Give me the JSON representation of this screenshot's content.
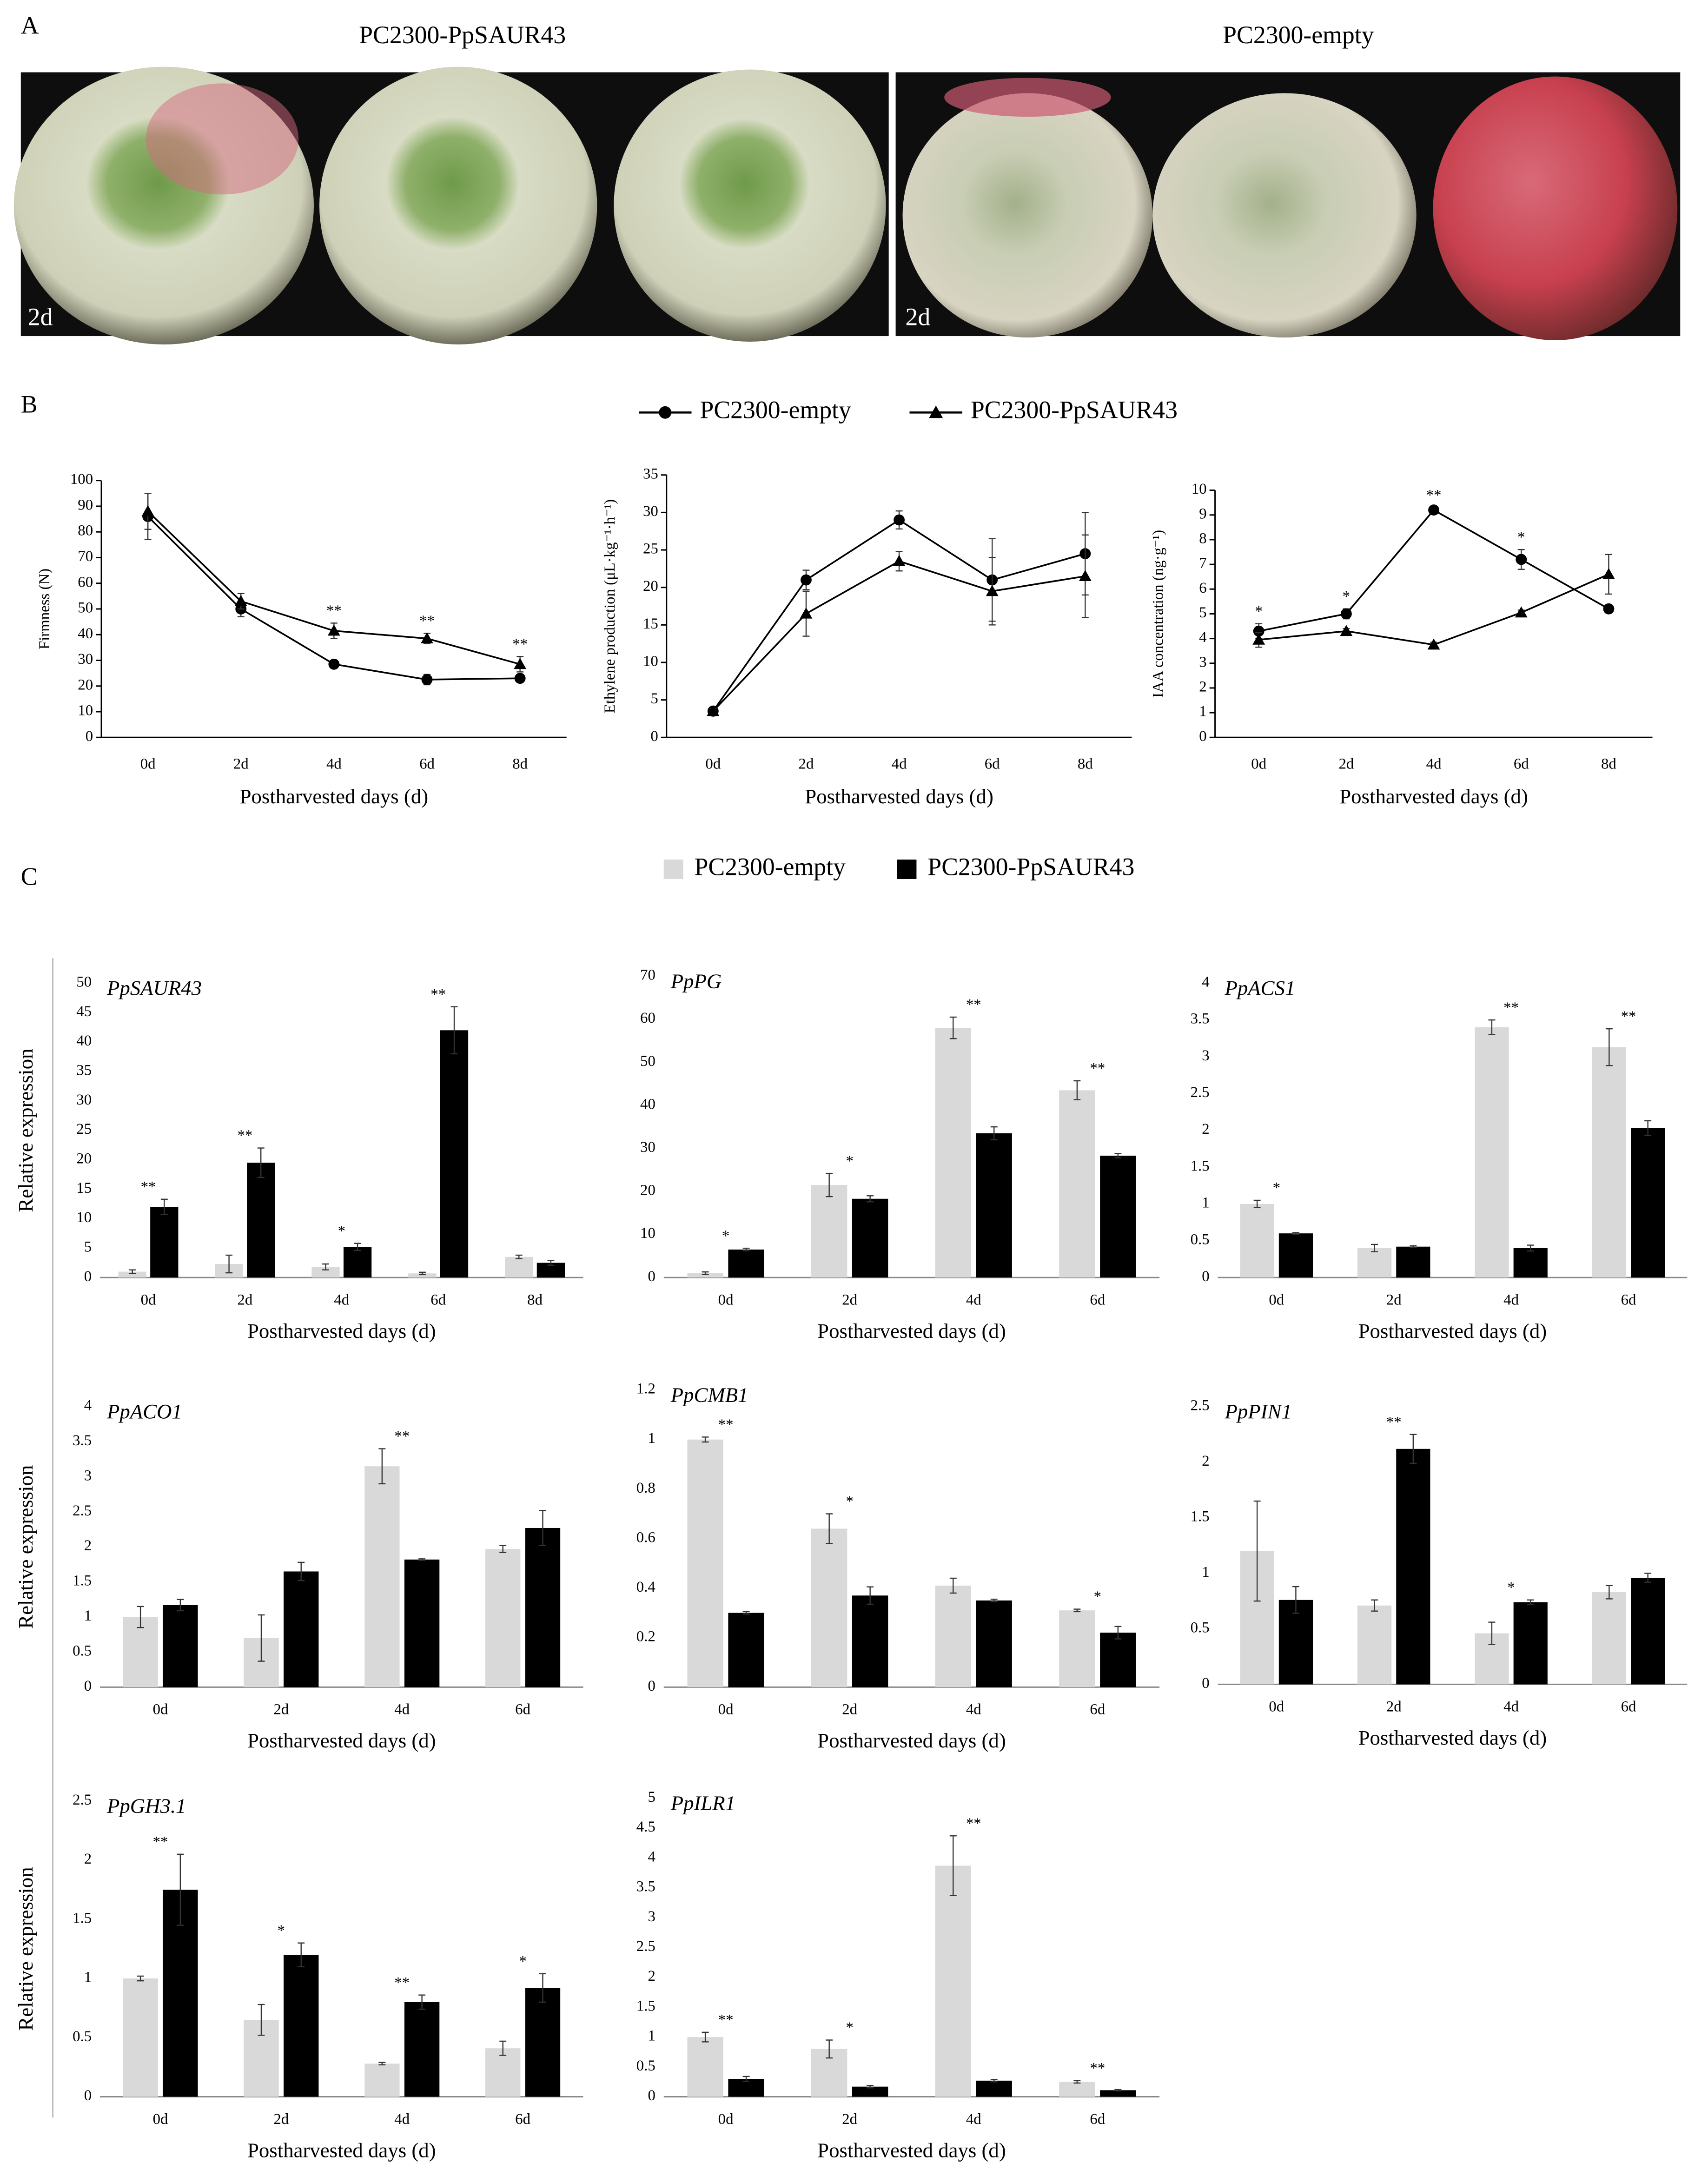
{
  "panel_labels": [
    "A",
    "B",
    "C"
  ],
  "photos": [
    {
      "title": "PC2300-PpSAUR43",
      "label": "2d"
    },
    {
      "title": "PC2300-empty",
      "label": "2d"
    }
  ],
  "chart_data": [
    {
      "type": "line",
      "ylabel": "Firmness (N)",
      "xlabel": "Postharvested days (d)",
      "categories": [
        "0d",
        "2d",
        "4d",
        "6d",
        "8d"
      ],
      "series": [
        {
          "name": "PC2300-empty",
          "color": "#000000",
          "marker": "circle",
          "values": [
            86,
            50,
            28.5,
            22.5,
            23
          ],
          "errors": [
            9,
            3,
            1.5,
            2,
            1
          ]
        },
        {
          "name": "PC2300-PpSAUR43",
          "color": "#000000",
          "marker": "triangle",
          "values": [
            88,
            53,
            41.5,
            38.5,
            28.5
          ],
          "errors": [
            7,
            3,
            3,
            2,
            3
          ]
        }
      ],
      "annotations": [
        null,
        null,
        "**",
        "**",
        "**"
      ],
      "ylim": [
        0,
        100
      ],
      "yticks": [
        0,
        10,
        20,
        30,
        40,
        50,
        60,
        70,
        80,
        90,
        100
      ]
    },
    {
      "type": "line",
      "ylabel": "Ethylene production (μL·kg⁻¹·h⁻¹)",
      "xlabel": "Postharvested days (d)",
      "categories": [
        "0d",
        "2d",
        "4d",
        "6d",
        "8d"
      ],
      "series": [
        {
          "name": "PC2300-empty",
          "color": "#000000",
          "marker": "circle",
          "values": [
            3.5,
            21,
            29,
            21,
            24.5
          ],
          "errors": [
            0.3,
            1.3,
            1.2,
            5.5,
            5.5
          ]
        },
        {
          "name": "PC2300-PpSAUR43",
          "color": "#000000",
          "marker": "triangle",
          "values": [
            3.5,
            16.5,
            23.5,
            19.5,
            21.5
          ],
          "errors": [
            0.3,
            3,
            1.3,
            4.5,
            5.5
          ]
        }
      ],
      "ylim": [
        0,
        35
      ],
      "yticks": [
        0,
        5,
        10,
        15,
        20,
        25,
        30,
        35
      ]
    },
    {
      "type": "line",
      "ylabel": "IAA concentration (ng·g⁻¹)",
      "xlabel": "Postharvested days (d)",
      "categories": [
        "0d",
        "2d",
        "4d",
        "6d",
        "8d"
      ],
      "series": [
        {
          "name": "PC2300-empty",
          "color": "#000000",
          "marker": "circle",
          "values": [
            4.3,
            5,
            9.2,
            7.2,
            5.2
          ],
          "errors": [
            0.3,
            0.2,
            0.1,
            0.4,
            0.1
          ]
        },
        {
          "name": "PC2300-PpSAUR43",
          "color": "#000000",
          "marker": "triangle",
          "values": [
            3.95,
            4.3,
            3.75,
            5.05,
            6.6
          ],
          "errors": [
            0.3,
            0.1,
            0.1,
            0.1,
            0.8
          ]
        }
      ],
      "annotations": [
        "*",
        "*",
        "**",
        "*",
        null
      ],
      "ylim": [
        0,
        10
      ],
      "yticks": [
        0,
        1,
        2,
        3,
        4,
        5,
        6,
        7,
        8,
        9,
        10
      ]
    },
    {
      "type": "bar",
      "title": "PpSAUR43",
      "ylabel": "Relative expression",
      "xlabel": "Postharvested days (d)",
      "categories": [
        "0d",
        "2d",
        "4d",
        "6d",
        "8d"
      ],
      "series": [
        {
          "name": "PC2300-empty",
          "color": "#d9d9d9",
          "values": [
            1,
            2.3,
            1.8,
            0.7,
            3.5
          ],
          "errors": [
            0.3,
            1.5,
            0.5,
            0.2,
            0.3
          ]
        },
        {
          "name": "PC2300-PpSAUR43",
          "color": "#000000",
          "values": [
            12,
            19.5,
            5.2,
            42,
            2.5
          ],
          "errors": [
            1.3,
            2.5,
            0.6,
            4,
            0.4
          ]
        }
      ],
      "annotations": [
        "**",
        "**",
        "*",
        "**",
        null
      ],
      "ylim": [
        0,
        50
      ],
      "yticks": [
        0,
        5,
        10,
        15,
        20,
        25,
        30,
        35,
        40,
        45,
        50
      ]
    },
    {
      "type": "bar",
      "title": "PpPG",
      "xlabel": "Postharvested days (d)",
      "categories": [
        "0d",
        "2d",
        "4d",
        "6d"
      ],
      "series": [
        {
          "name": "PC2300-empty",
          "color": "#d9d9d9",
          "values": [
            1,
            21.5,
            58,
            43.5
          ],
          "errors": [
            0.3,
            2.7,
            2.5,
            2.2
          ]
        },
        {
          "name": "PC2300-PpSAUR43",
          "color": "#000000",
          "values": [
            6.5,
            18.3,
            33.5,
            28.3
          ],
          "errors": [
            0.3,
            0.7,
            1.5,
            0.5
          ]
        }
      ],
      "annotations": [
        "*",
        "*",
        "**",
        "**"
      ],
      "ylim": [
        0,
        70
      ],
      "yticks": [
        0,
        10,
        20,
        30,
        40,
        50,
        60,
        70
      ]
    },
    {
      "type": "bar",
      "title": "PpACS1",
      "xlabel": "Postharvested days (d)",
      "categories": [
        "0d",
        "2d",
        "4d",
        "6d"
      ],
      "series": [
        {
          "name": "PC2300-empty",
          "color": "#d9d9d9",
          "values": [
            1,
            0.4,
            3.4,
            3.13
          ],
          "errors": [
            0.05,
            0.05,
            0.1,
            0.25
          ]
        },
        {
          "name": "PC2300-PpSAUR43",
          "color": "#000000",
          "values": [
            0.6,
            0.42,
            0.4,
            2.03
          ],
          "errors": [
            0.01,
            0.01,
            0.04,
            0.1
          ]
        }
      ],
      "annotations": [
        "*",
        null,
        "**",
        "**"
      ],
      "ylim": [
        0,
        4
      ],
      "yticks": [
        0,
        0.5,
        1,
        1.5,
        2,
        2.5,
        3,
        3.5,
        4
      ]
    },
    {
      "type": "bar",
      "title": "PpACO1",
      "ylabel": "Relative expression",
      "xlabel": "Postharvested days (d)",
      "categories": [
        "0d",
        "2d",
        "4d",
        "6d"
      ],
      "series": [
        {
          "name": "PC2300-empty",
          "color": "#d9d9d9",
          "values": [
            1,
            0.7,
            3.15,
            1.97
          ],
          "errors": [
            0.15,
            0.33,
            0.25,
            0.05
          ]
        },
        {
          "name": "PC2300-PpSAUR43",
          "color": "#000000",
          "values": [
            1.17,
            1.65,
            1.82,
            2.27
          ],
          "errors": [
            0.08,
            0.13,
            0.01,
            0.25
          ]
        }
      ],
      "annotations": [
        null,
        null,
        "**",
        null
      ],
      "ylim": [
        0,
        4
      ],
      "yticks": [
        0,
        0.5,
        1,
        1.5,
        2,
        2.5,
        3,
        3.5,
        4
      ]
    },
    {
      "type": "bar",
      "title": "PpCMB1",
      "xlabel": "Postharvested days (d)",
      "categories": [
        "0d",
        "2d",
        "4d",
        "6d"
      ],
      "series": [
        {
          "name": "PC2300-empty",
          "color": "#d9d9d9",
          "values": [
            1,
            0.64,
            0.41,
            0.31
          ],
          "errors": [
            0.01,
            0.06,
            0.03,
            0.005
          ]
        },
        {
          "name": "PC2300-PpSAUR43",
          "color": "#000000",
          "values": [
            0.3,
            0.37,
            0.35,
            0.22
          ],
          "errors": [
            0.005,
            0.035,
            0.005,
            0.025
          ]
        }
      ],
      "annotations": [
        "**",
        "*",
        null,
        "*"
      ],
      "ylim": [
        0,
        1.2
      ],
      "yticks": [
        0,
        0.2,
        0.4,
        0.6,
        0.8,
        1,
        1.2
      ]
    },
    {
      "type": "bar",
      "title": "PpPIN1",
      "xlabel": "Postharvested days (d)",
      "categories": [
        "0d",
        "2d",
        "4d",
        "6d"
      ],
      "series": [
        {
          "name": "PC2300-empty",
          "color": "#d9d9d9",
          "values": [
            1.2,
            0.71,
            0.46,
            0.83
          ],
          "errors": [
            0.45,
            0.05,
            0.1,
            0.06
          ]
        },
        {
          "name": "PC2300-PpSAUR43",
          "color": "#000000",
          "values": [
            0.76,
            2.12,
            0.74,
            0.96
          ],
          "errors": [
            0.12,
            0.13,
            0.02,
            0.04
          ]
        }
      ],
      "annotations": [
        null,
        "**",
        "*",
        null
      ],
      "ylim": [
        0,
        2.5
      ],
      "yticks": [
        0,
        0.5,
        1,
        1.5,
        2,
        2.5
      ]
    },
    {
      "type": "bar",
      "title": "PpGH3.1",
      "ylabel": "Relative expression",
      "xlabel": "Postharvested days (d)",
      "categories": [
        "0d",
        "2d",
        "4d",
        "6d"
      ],
      "series": [
        {
          "name": "PC2300-empty",
          "color": "#d9d9d9",
          "values": [
            1,
            0.65,
            0.28,
            0.41
          ],
          "errors": [
            0.02,
            0.13,
            0.01,
            0.06
          ]
        },
        {
          "name": "PC2300-PpSAUR43",
          "color": "#000000",
          "values": [
            1.75,
            1.2,
            0.8,
            0.92
          ],
          "errors": [
            0.3,
            0.1,
            0.06,
            0.12
          ]
        }
      ],
      "annotations": [
        "**",
        "*",
        "**",
        "*"
      ],
      "ylim": [
        0,
        2.5
      ],
      "yticks": [
        0,
        0.5,
        1,
        1.5,
        2,
        2.5
      ]
    },
    {
      "type": "bar",
      "title": "PpILR1",
      "xlabel": "Postharvested days (d)",
      "categories": [
        "0d",
        "2d",
        "4d",
        "6d"
      ],
      "series": [
        {
          "name": "PC2300-empty",
          "color": "#d9d9d9",
          "values": [
            1,
            0.8,
            3.87,
            0.25
          ],
          "errors": [
            0.08,
            0.15,
            0.5,
            0.02
          ]
        },
        {
          "name": "PC2300-PpSAUR43",
          "color": "#000000",
          "values": [
            0.3,
            0.17,
            0.27,
            0.11
          ],
          "errors": [
            0.04,
            0.02,
            0.02,
            0.01
          ]
        }
      ],
      "annotations": [
        "**",
        "*",
        "**",
        "**"
      ],
      "ylim": [
        0,
        5
      ],
      "yticks": [
        0,
        0.5,
        1,
        1.5,
        2,
        2.5,
        3,
        3.5,
        4,
        4.5,
        5
      ]
    }
  ]
}
